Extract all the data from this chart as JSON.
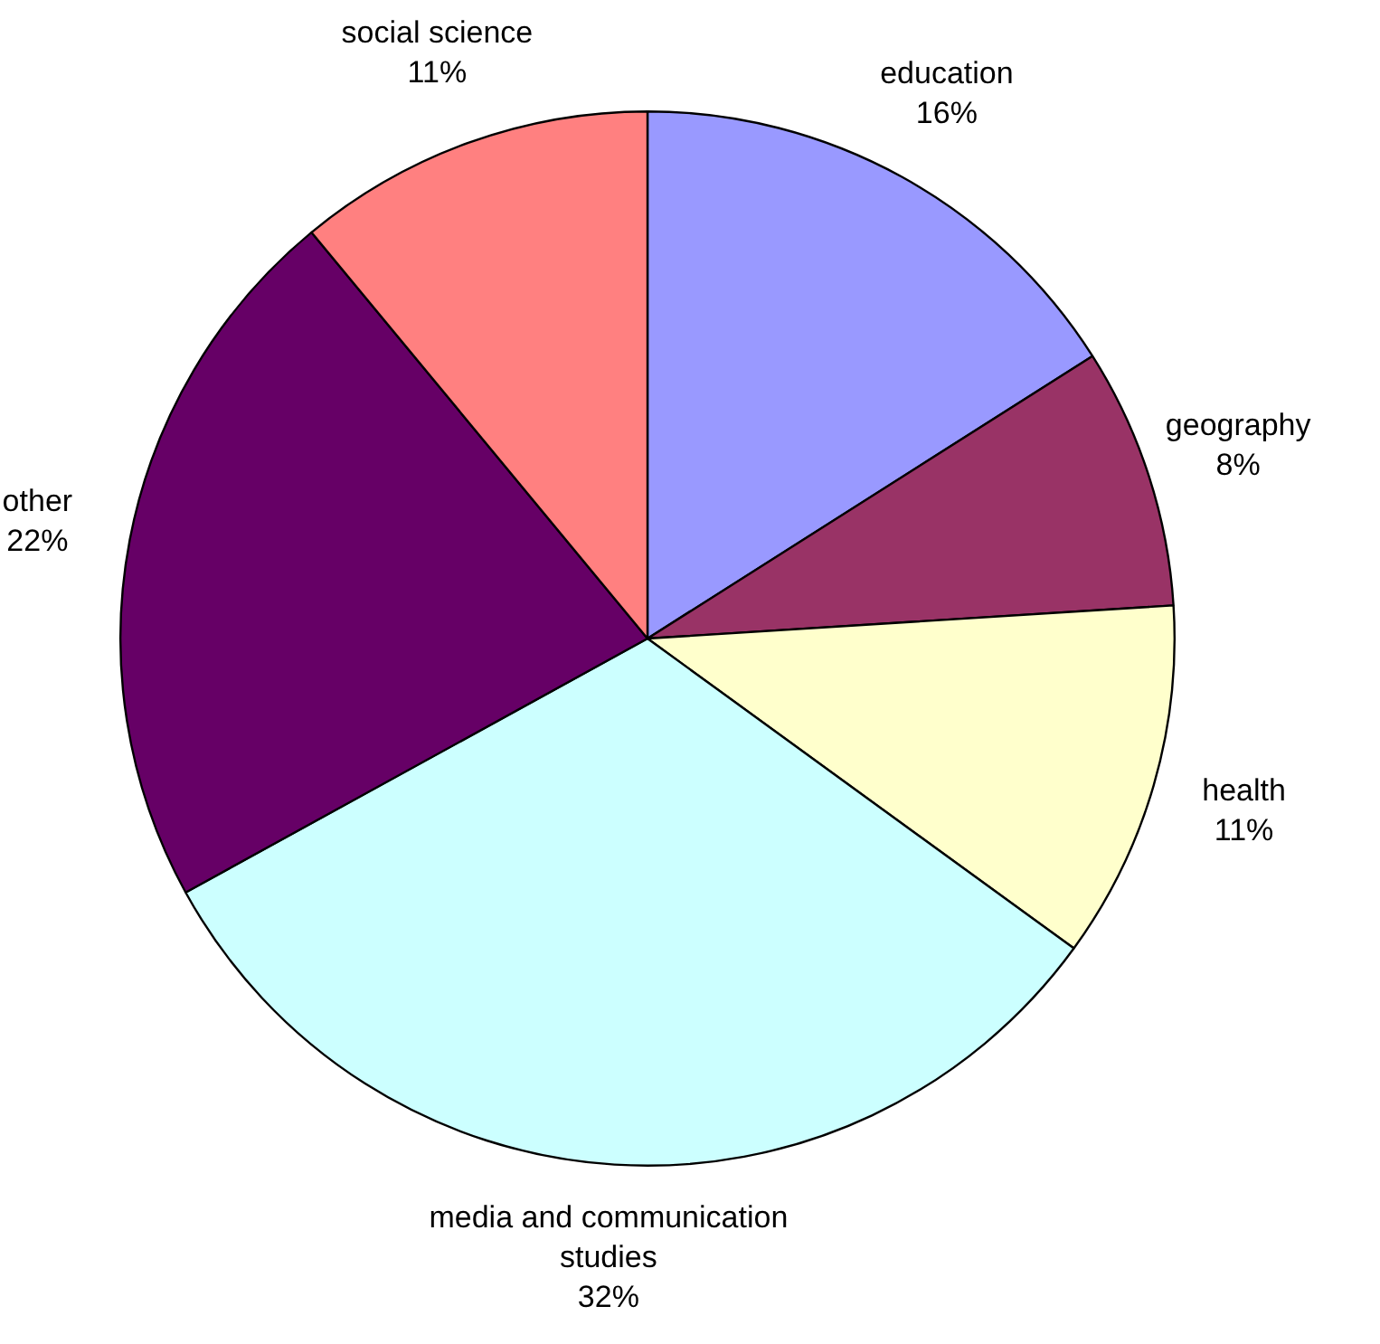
{
  "chart_data": {
    "type": "pie",
    "categories": [
      "education",
      "geography",
      "health",
      "media and communication studies",
      "other",
      "social science"
    ],
    "values": [
      16,
      8,
      11,
      32,
      22,
      11
    ],
    "colors": [
      "#9999ff",
      "#993366",
      "#ffffcc",
      "#ccffff",
      "#660066",
      "#ff8080"
    ],
    "value_labels": [
      "16%",
      "8%",
      "11%",
      "32%",
      "22%",
      "11%"
    ],
    "legend": false
  }
}
